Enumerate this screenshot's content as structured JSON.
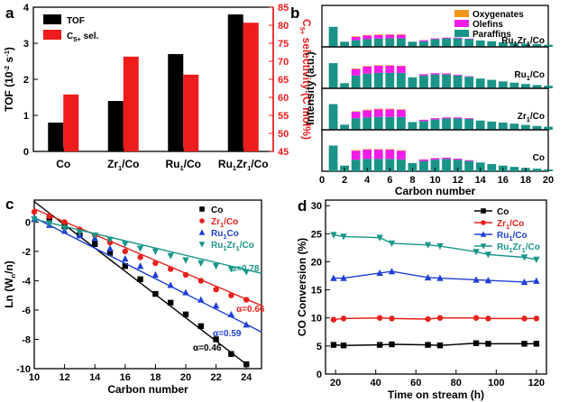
{
  "panels": {
    "a": "a",
    "b": "b",
    "c": "c",
    "d": "d"
  },
  "chart_data": [
    {
      "id": "a",
      "type": "bar",
      "categories": [
        "Co",
        "Zr1/Co",
        "Ru1/Co",
        "Ru1Zr1/Co"
      ],
      "category_labels": [
        {
          "base": "Co",
          "sub": "",
          "mid": "",
          "sub2": "",
          "tail": ""
        },
        {
          "base": "Zr",
          "sub": "1",
          "mid": "/Co",
          "sub2": "",
          "tail": ""
        },
        {
          "base": "Ru",
          "sub": "1",
          "mid": "/Co",
          "sub2": "",
          "tail": ""
        },
        {
          "base": "Ru",
          "sub": "1",
          "mid": "Zr",
          "sub2": "1",
          "tail": "/Co"
        }
      ],
      "series": [
        {
          "name": "TOF",
          "axis": "left",
          "color": "#000000",
          "values": [
            0.8,
            1.4,
            2.7,
            3.8
          ]
        },
        {
          "name": "C5+ sel.",
          "axis": "right",
          "color": "#ee1c1c",
          "values": [
            60.8,
            71.3,
            66.3,
            80.7
          ]
        }
      ],
      "legend": [
        {
          "text": "TOF",
          "color": "#000000"
        },
        {
          "text": "C",
          "sub": "5+",
          "tail": " sel.",
          "color": "#ee1c1c"
        }
      ],
      "ylabel_left": {
        "text": "TOF (10",
        "sup1": "-2",
        "mid": " s",
        "sup2": "-1",
        "tail": ")"
      },
      "ylabel_right": {
        "text": "C",
        "sub": "5+",
        "tail": " selectivity (C mol%)"
      },
      "ylim_left": [
        0,
        4
      ],
      "yticks_left": [
        0,
        1,
        2,
        3,
        4
      ],
      "ylim_right": [
        45,
        85
      ],
      "yticks_right": [
        45,
        50,
        55,
        60,
        65,
        70,
        75,
        80,
        85
      ],
      "legend_position": "top-left"
    },
    {
      "id": "b",
      "type": "bar",
      "stacked": true,
      "xlabel": "Carbon number",
      "ylabel": "Intensity (a.u.)",
      "xlim": [
        0,
        20
      ],
      "xticks": [
        0,
        2,
        4,
        6,
        8,
        10,
        12,
        14,
        16,
        18,
        20
      ],
      "components": [
        {
          "name": "Oxygenates",
          "color": "#f2961a"
        },
        {
          "name": "Olefins",
          "color": "#f21ce8"
        },
        {
          "name": "Paraffins",
          "color": "#1a9488"
        }
      ],
      "legend_position": "top-right",
      "subpanels": [
        {
          "label": {
            "base": "Ru",
            "sub": "1",
            "mid": "Zr",
            "sub2": "1",
            "tail": "/Co"
          },
          "paraffins": [
            0.78,
            0.2,
            0.26,
            0.3,
            0.32,
            0.33,
            0.33,
            0.2,
            0.22,
            0.3,
            0.33,
            0.33,
            0.3,
            0.25,
            0.22,
            0.18,
            0.15,
            0.13,
            0.11,
            0.08
          ],
          "olefins": [
            0.0,
            0.0,
            0.13,
            0.14,
            0.14,
            0.14,
            0.14,
            0.0,
            0.04,
            0.03,
            0.03,
            0.03,
            0.02,
            0.0,
            0.0,
            0.0,
            0.0,
            0.0,
            0.0,
            0.0
          ],
          "oxygenates": [
            0.0,
            0.0,
            0.02,
            0.02,
            0.02,
            0.02,
            0.02,
            0.0,
            0.0,
            0.0,
            0.0,
            0.0,
            0.0,
            0.0,
            0.0,
            0.0,
            0.0,
            0.0,
            0.0,
            0.0
          ]
        },
        {
          "label": {
            "base": "Ru",
            "sub": "1",
            "mid": "/Co",
            "sub2": "",
            "tail": ""
          },
          "paraffins": [
            0.98,
            0.2,
            0.5,
            0.57,
            0.6,
            0.6,
            0.6,
            0.43,
            0.5,
            0.54,
            0.54,
            0.5,
            0.45,
            0.38,
            0.33,
            0.27,
            0.22,
            0.17,
            0.13,
            0.1
          ],
          "olefins": [
            0.0,
            0.0,
            0.25,
            0.28,
            0.28,
            0.28,
            0.26,
            0.0,
            0.05,
            0.05,
            0.04,
            0.03,
            0.02,
            0.0,
            0.0,
            0.0,
            0.0,
            0.0,
            0.0,
            0.0
          ],
          "oxygenates": [
            0.0,
            0.0,
            0.02,
            0.02,
            0.02,
            0.02,
            0.02,
            0.0,
            0.0,
            0.0,
            0.0,
            0.0,
            0.0,
            0.0,
            0.0,
            0.0,
            0.0,
            0.0,
            0.0,
            0.0
          ]
        },
        {
          "label": {
            "base": "Zr",
            "sub": "1",
            "mid": "/Co",
            "sub2": "",
            "tail": ""
          },
          "paraffins": [
            1.0,
            0.2,
            0.45,
            0.48,
            0.5,
            0.5,
            0.5,
            0.3,
            0.34,
            0.4,
            0.44,
            0.44,
            0.42,
            0.36,
            0.32,
            0.28,
            0.24,
            0.19,
            0.15,
            0.12
          ],
          "olefins": [
            0.0,
            0.0,
            0.25,
            0.28,
            0.3,
            0.3,
            0.28,
            0.0,
            0.05,
            0.05,
            0.04,
            0.04,
            0.03,
            0.0,
            0.0,
            0.0,
            0.0,
            0.0,
            0.0,
            0.0
          ],
          "oxygenates": [
            0.0,
            0.0,
            0.02,
            0.02,
            0.02,
            0.02,
            0.02,
            0.0,
            0.0,
            0.0,
            0.0,
            0.0,
            0.0,
            0.0,
            0.0,
            0.0,
            0.0,
            0.0,
            0.0,
            0.0
          ]
        },
        {
          "label": {
            "base": "Co",
            "sub": "",
            "mid": "",
            "sub2": "",
            "tail": ""
          },
          "paraffins": [
            1.0,
            0.22,
            0.45,
            0.48,
            0.48,
            0.48,
            0.46,
            0.32,
            0.4,
            0.45,
            0.48,
            0.45,
            0.4,
            0.34,
            0.28,
            0.22,
            0.17,
            0.13,
            0.1,
            0.07
          ],
          "olefins": [
            0.0,
            0.0,
            0.35,
            0.36,
            0.36,
            0.36,
            0.34,
            0.0,
            0.06,
            0.06,
            0.05,
            0.04,
            0.03,
            0.0,
            0.0,
            0.0,
            0.0,
            0.0,
            0.0,
            0.0
          ],
          "oxygenates": [
            0.0,
            0.0,
            0.02,
            0.02,
            0.02,
            0.02,
            0.02,
            0.0,
            0.0,
            0.0,
            0.0,
            0.0,
            0.0,
            0.0,
            0.0,
            0.0,
            0.0,
            0.0,
            0.0,
            0.0
          ]
        }
      ]
    },
    {
      "id": "c",
      "type": "scatter",
      "xlabel": "Carbon number",
      "ylabel": {
        "text": "Ln (W",
        "sub1": "n",
        "mid": "/n)"
      },
      "xlim": [
        10,
        25
      ],
      "xticks": [
        10,
        12,
        14,
        16,
        18,
        20,
        22,
        24
      ],
      "ylim": [
        -10,
        1.5
      ],
      "yticks": [
        0,
        -2,
        -4,
        -6,
        -8,
        -10
      ],
      "legend_position": "top-right",
      "series": [
        {
          "name": {
            "base": "Co",
            "sub": "",
            "mid": "",
            "sub2": "",
            "tail": ""
          },
          "color": "#000000",
          "marker": "square",
          "x": [
            11,
            12,
            13,
            14,
            15,
            16,
            17,
            18,
            19,
            20,
            21,
            22,
            23,
            24
          ],
          "y": [
            0.3,
            -0.3,
            -0.9,
            -1.5,
            -2.1,
            -3.0,
            -3.9,
            -4.9,
            -5.5,
            -6.3,
            -7.1,
            -8.0,
            -9.0,
            -9.7
          ],
          "fit": [
            [
              10,
              1.4
            ],
            [
              24,
              -9.7
            ]
          ],
          "alpha": "α=0.46"
        },
        {
          "name": {
            "base": "Zr",
            "sub": "1",
            "mid": "/Co",
            "sub2": "",
            "tail": ""
          },
          "color": "#e8211c",
          "marker": "circle",
          "x": [
            10,
            11,
            12,
            13,
            14,
            15,
            16,
            17,
            18,
            19,
            20,
            21,
            22,
            23,
            24
          ],
          "y": [
            0.7,
            0.4,
            0.0,
            -0.5,
            -0.9,
            -1.4,
            -2.0,
            -2.4,
            -2.8,
            -3.2,
            -3.6,
            -4.0,
            -4.6,
            -5.0,
            -5.3
          ],
          "fit": [
            [
              10,
              0.9
            ],
            [
              25,
              -5.7
            ]
          ],
          "alpha": "α=0.66"
        },
        {
          "name": {
            "base": "Ru",
            "sub": "1",
            "mid": "Co",
            "sub2": "",
            "tail": ""
          },
          "color": "#1f3fd6",
          "marker": "triangle-up",
          "x": [
            10,
            11,
            12,
            13,
            14,
            15,
            16,
            17,
            18,
            19,
            20,
            21,
            22,
            23,
            24
          ],
          "y": [
            0.2,
            -0.2,
            -0.6,
            -0.9,
            -1.1,
            -1.8,
            -2.5,
            -3.0,
            -3.6,
            -4.3,
            -4.8,
            -5.3,
            -5.7,
            -6.3,
            -7.0
          ],
          "fit": [
            [
              10,
              0.3
            ],
            [
              25,
              -7.5
            ]
          ],
          "alpha": "α=0.59"
        },
        {
          "name": {
            "base": "Ru",
            "sub": "1",
            "mid": "Zr",
            "sub2": "1",
            "tail": "/Co"
          },
          "color": "#18968a",
          "marker": "triangle-down",
          "x": [
            10,
            11,
            12,
            13,
            14,
            15,
            16,
            17,
            18,
            19,
            20,
            21,
            22,
            23,
            24
          ],
          "y": [
            0.2,
            -0.1,
            -0.4,
            -0.7,
            -0.9,
            -1.2,
            -1.5,
            -1.8,
            -2.0,
            -2.3,
            -2.6,
            -2.8,
            -3.0,
            -3.2,
            -3.4
          ],
          "fit": [
            [
              10,
              0.2
            ],
            [
              25,
              -3.5
            ]
          ],
          "alpha": "α=0.78"
        }
      ]
    },
    {
      "id": "d",
      "type": "line",
      "xlabel": "Time on stream (h)",
      "ylabel": "CO Conversion (%)",
      "xlim": [
        15,
        125
      ],
      "xticks": [
        20,
        40,
        60,
        80,
        100,
        120
      ],
      "ylim": [
        0,
        31
      ],
      "yticks": [
        0,
        5,
        10,
        15,
        20,
        25,
        30
      ],
      "legend_position": "top-right",
      "series": [
        {
          "name": {
            "base": "Co",
            "sub": "",
            "mid": "",
            "sub2": "",
            "tail": ""
          },
          "color": "#000000",
          "marker": "square",
          "x": [
            19,
            24,
            42,
            48,
            66,
            72,
            90,
            96,
            114,
            120
          ],
          "y": [
            5.2,
            5.1,
            5.2,
            5.3,
            5.2,
            5.1,
            5.5,
            5.4,
            5.4,
            5.4
          ]
        },
        {
          "name": {
            "base": "Zr",
            "sub": "1",
            "mid": "/Co",
            "sub2": "",
            "tail": ""
          },
          "color": "#e8211c",
          "marker": "circle",
          "x": [
            19,
            24,
            42,
            48,
            66,
            72,
            90,
            96,
            114,
            120
          ],
          "y": [
            9.7,
            9.9,
            10.0,
            9.9,
            9.8,
            10.0,
            10.0,
            9.9,
            9.9,
            9.9
          ]
        },
        {
          "name": {
            "base": "Ru",
            "sub": "1",
            "mid": "/Co",
            "sub2": "",
            "tail": ""
          },
          "color": "#1f3fd6",
          "marker": "triangle-up",
          "x": [
            19,
            24,
            42,
            48,
            66,
            72,
            90,
            96,
            114,
            120
          ],
          "y": [
            17.1,
            17.1,
            18.0,
            18.3,
            17.2,
            17.1,
            16.8,
            16.7,
            16.4,
            16.6
          ]
        },
        {
          "name": {
            "base": "Ru",
            "sub": "1",
            "mid": "Zr",
            "sub2": "1",
            "tail": "/Co"
          },
          "color": "#18968a",
          "marker": "triangle-down",
          "x": [
            19,
            24,
            42,
            48,
            66,
            72,
            90,
            96,
            114,
            120
          ],
          "y": [
            24.8,
            24.5,
            24.3,
            23.3,
            23.0,
            22.8,
            21.8,
            21.3,
            20.8,
            20.4
          ]
        }
      ]
    }
  ]
}
